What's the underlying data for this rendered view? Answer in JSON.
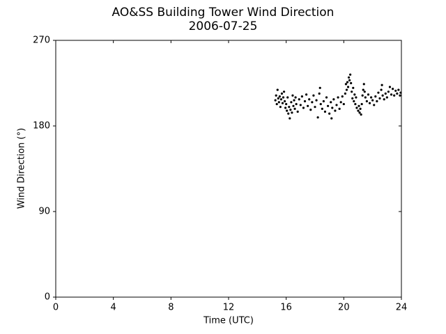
{
  "chart_data": {
    "type": "scatter",
    "title": "AO&SS Building Tower Wind Direction",
    "subtitle": "2006-07-25",
    "x_label": "Time (UTC)",
    "y_label": "Wind Direction (°)",
    "color": "#000000",
    "xlim": [
      0,
      24
    ],
    "xticks": [
      0,
      4,
      8,
      12,
      16,
      20,
      24
    ],
    "ylim": [
      0,
      270
    ],
    "yticks": [
      0,
      90,
      180,
      270
    ],
    "grid": false,
    "x": [
      15.25,
      15.3,
      15.35,
      15.4,
      15.45,
      15.5,
      15.55,
      15.6,
      15.65,
      15.7,
      15.75,
      15.8,
      15.85,
      15.9,
      15.95,
      16.0,
      16.05,
      16.1,
      16.15,
      16.2,
      16.25,
      16.3,
      16.35,
      16.4,
      16.45,
      16.5,
      16.55,
      16.6,
      16.65,
      16.7,
      16.8,
      16.9,
      17.0,
      17.1,
      17.2,
      17.3,
      17.4,
      17.5,
      17.6,
      17.7,
      17.8,
      17.9,
      18.0,
      18.1,
      18.2,
      18.3,
      18.35,
      18.4,
      18.5,
      18.6,
      18.7,
      18.8,
      18.9,
      19.0,
      19.1,
      19.15,
      19.2,
      19.3,
      19.4,
      19.5,
      19.6,
      19.7,
      19.8,
      19.9,
      20.0,
      20.1,
      20.15,
      20.2,
      20.25,
      20.3,
      20.35,
      20.4,
      20.45,
      20.5,
      20.55,
      20.6,
      20.65,
      20.7,
      20.75,
      20.8,
      20.85,
      20.9,
      21.0,
      21.05,
      21.1,
      21.15,
      21.2,
      21.25,
      21.3,
      21.35,
      21.4,
      21.45,
      21.5,
      21.6,
      21.7,
      21.8,
      21.9,
      22.0,
      22.1,
      22.2,
      22.3,
      22.4,
      22.5,
      22.6,
      22.65,
      22.7,
      22.8,
      22.9,
      23.0,
      23.1,
      23.2,
      23.3,
      23.4,
      23.5,
      23.6,
      23.7,
      23.8,
      23.9,
      23.95
    ],
    "values": [
      207,
      212,
      203,
      218,
      209,
      205,
      211,
      200,
      208,
      214,
      204,
      210,
      216,
      206,
      199,
      203,
      196,
      210,
      193,
      200,
      188,
      197,
      205,
      194,
      212,
      201,
      207,
      198,
      210,
      203,
      195,
      208,
      202,
      211,
      199,
      206,
      213,
      201,
      208,
      197,
      205,
      212,
      200,
      207,
      189,
      214,
      220,
      203,
      198,
      206,
      195,
      210,
      201,
      193,
      205,
      188,
      199,
      208,
      196,
      202,
      210,
      198,
      205,
      211,
      203,
      214,
      224,
      218,
      226,
      221,
      231,
      228,
      234,
      225,
      216,
      209,
      220,
      206,
      213,
      203,
      210,
      199,
      196,
      201,
      194,
      198,
      192,
      203,
      212,
      218,
      224,
      216,
      210,
      206,
      213,
      204,
      210,
      207,
      202,
      211,
      206,
      215,
      209,
      218,
      223,
      212,
      208,
      214,
      210,
      216,
      221,
      213,
      219,
      212,
      217,
      214,
      218,
      212,
      215
    ]
  }
}
